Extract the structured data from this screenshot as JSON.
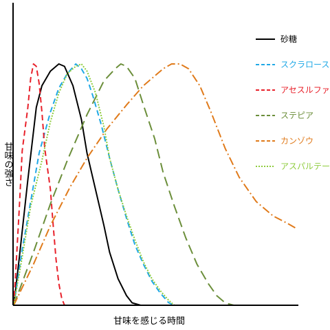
{
  "chart_data": {
    "type": "line",
    "xlabel": "甘味を感じる時間",
    "ylabel": "甘味の強さ",
    "xlim": [
      0,
      100
    ],
    "ylim": [
      0,
      100
    ],
    "grid": false,
    "legend_position": "top-right",
    "series": [
      {
        "name": "砂糖",
        "color": "#000000",
        "dash": "solid",
        "x": [
          0,
          2,
          5,
          8,
          10,
          13,
          16,
          18,
          21,
          24,
          26,
          29,
          32,
          34,
          37,
          40,
          42,
          45
        ],
        "y": [
          0,
          20,
          52,
          82,
          91,
          97,
          100,
          99,
          91,
          77,
          63,
          48,
          33,
          22,
          11,
          4,
          1,
          0
        ]
      },
      {
        "name": "スクラロース",
        "color": "#1fa8e6",
        "dash": "dash",
        "x": [
          0,
          3,
          6,
          9,
          13,
          16,
          19,
          22,
          24,
          26,
          28,
          31,
          34,
          37,
          40,
          43,
          46,
          49,
          52,
          55,
          57
        ],
        "y": [
          0,
          23,
          43,
          63,
          80,
          90,
          96,
          100,
          98,
          94,
          87,
          75,
          61,
          48,
          36,
          25,
          17,
          10,
          5,
          1,
          0
        ]
      },
      {
        "name": "アセスルファムK",
        "color": "#e8202a",
        "dash": "dash",
        "x": [
          0,
          1,
          2,
          3,
          5,
          6,
          7,
          8,
          9,
          10,
          11,
          13,
          14,
          15,
          16,
          17,
          18
        ],
        "y": [
          0,
          20,
          41,
          64,
          82,
          94,
          100,
          99,
          92,
          80,
          65,
          48,
          33,
          19,
          9,
          3,
          0
        ]
      },
      {
        "name": "ステピア",
        "color": "#6b8e3a",
        "dash": "longdash",
        "x": [
          0,
          7,
          13,
          19,
          26,
          32,
          36,
          38,
          40,
          43,
          46,
          50,
          53,
          57,
          61,
          65,
          69,
          72,
          75,
          78
        ],
        "y": [
          0,
          22,
          42,
          60,
          79,
          93,
          98,
          100,
          99,
          94,
          83,
          69,
          55,
          41,
          28,
          17,
          9,
          4,
          1,
          0
        ]
      },
      {
        "name": "カンゾウ",
        "color": "#e07a1a",
        "dash": "dashdot",
        "x": [
          0,
          7,
          13,
          20,
          26,
          33,
          40,
          46,
          53,
          56,
          59,
          62,
          66,
          70,
          75,
          80,
          86,
          92,
          97,
          100
        ],
        "y": [
          0,
          17,
          33,
          49,
          61,
          73,
          83,
          91,
          98,
          100,
          100,
          98,
          91,
          80,
          65,
          53,
          43,
          37,
          34,
          32
        ]
      },
      {
        "name": "アスパルテーム",
        "color": "#8ecc3c",
        "dash": "dot",
        "x": [
          0,
          3,
          6,
          10,
          13,
          16,
          19,
          22,
          24,
          26,
          29,
          32,
          34,
          37,
          40,
          43,
          46,
          49,
          52,
          55,
          57,
          58
        ],
        "y": [
          0,
          20,
          41,
          60,
          76,
          88,
          96,
          99,
          100,
          97,
          88,
          74,
          61,
          48,
          37,
          27,
          18,
          11,
          6,
          2,
          0,
          0
        ]
      }
    ]
  }
}
